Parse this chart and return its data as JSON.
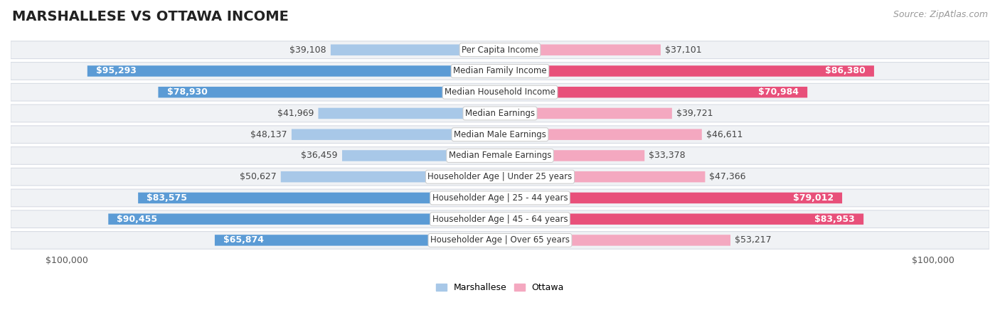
{
  "title": "MARSHALLESE VS OTTAWA INCOME",
  "source": "Source: ZipAtlas.com",
  "categories": [
    "Per Capita Income",
    "Median Family Income",
    "Median Household Income",
    "Median Earnings",
    "Median Male Earnings",
    "Median Female Earnings",
    "Householder Age | Under 25 years",
    "Householder Age | 25 - 44 years",
    "Householder Age | 45 - 64 years",
    "Householder Age | Over 65 years"
  ],
  "marshallese": [
    39108,
    95293,
    78930,
    41969,
    48137,
    36459,
    50627,
    83575,
    90455,
    65874
  ],
  "ottawa": [
    37101,
    86380,
    70984,
    39721,
    46611,
    33378,
    47366,
    79012,
    83953,
    53217
  ],
  "max_val": 100000,
  "blue_light": "#a8c8e8",
  "blue_dark": "#5b9bd5",
  "pink_light": "#f4a8c0",
  "pink_dark": "#e8507a",
  "row_bg": "#f0f2f5",
  "row_border": "#d8dce4",
  "inside_threshold": 55000,
  "title_fontsize": 14,
  "source_fontsize": 9,
  "value_fontsize": 9,
  "label_fontsize": 8.5,
  "axis_label_fontsize": 9,
  "legend_fontsize": 9
}
